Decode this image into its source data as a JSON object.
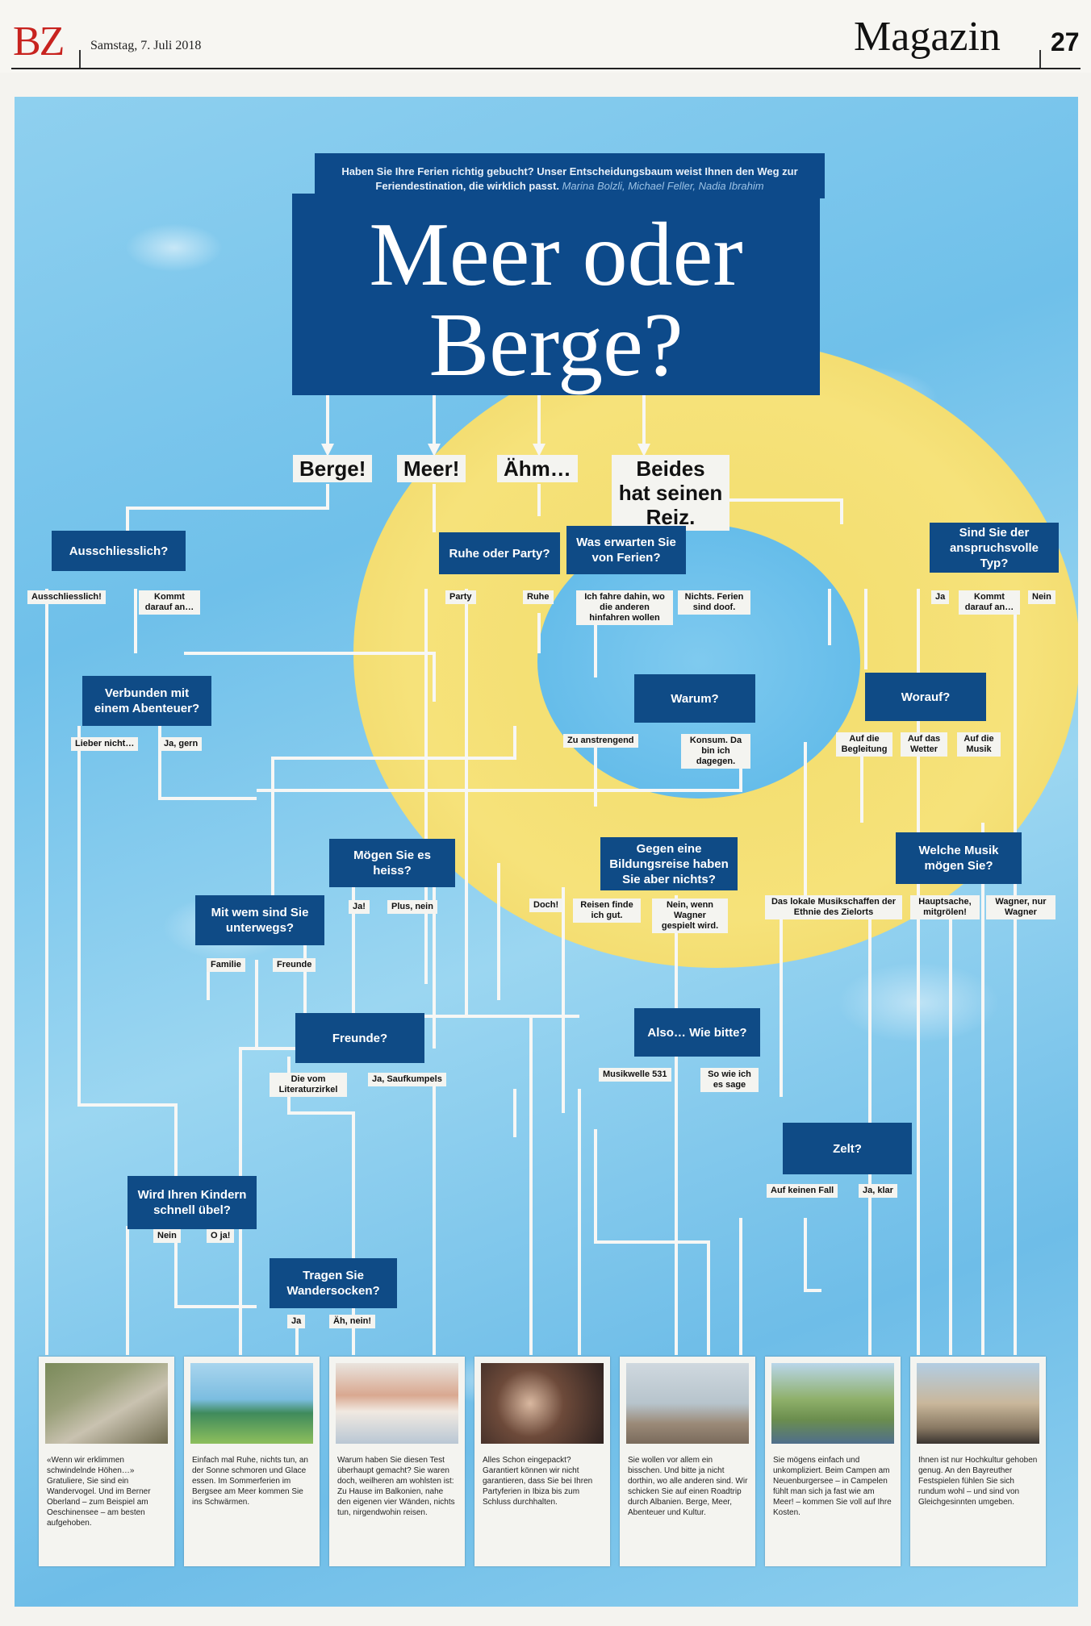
{
  "header": {
    "logo": "BZ",
    "date": "Samstag, 7. Juli 2018",
    "section": "Magazin",
    "page": "27"
  },
  "intro": {
    "text": "Haben Sie Ihre Ferien richtig gebucht? Unser Entscheidungsbaum weist Ihnen den Weg zur Feriendestination, die wirklich passt.",
    "credits": "Marina Bolzli, Michael Feller, Nadia Ibrahim"
  },
  "title": {
    "line1": "Meer oder",
    "line2": "Berge?"
  },
  "answers_top": [
    "Berge!",
    "Meer!",
    "Ähm…",
    "Beides hat seinen Reiz."
  ],
  "questions": {
    "ausschliesslich": "Ausschliesslich?",
    "ruhe_party": "Ruhe oder Party?",
    "erwarten": "Was erwarten Sie von Ferien?",
    "anspruchsvoll": "Sind Sie der anspruchsvolle Typ?",
    "abenteuer": "Verbunden mit einem Abenteuer?",
    "warum": "Warum?",
    "worauf": "Worauf?",
    "heiss": "Mögen Sie es heiss?",
    "bildungsreise": "Gegen eine Bildungsreise haben Sie aber nichts?",
    "musik": "Welche Musik mögen Sie?",
    "mit_wem": "Mit wem sind Sie unterwegs?",
    "freunde": "Freunde?",
    "wie_bitte": "Also… Wie bitte?",
    "zelt": "Zelt?",
    "kinder": "Wird Ihren Kindern schnell übel?",
    "wandersocken": "Tragen Sie Wandersocken?"
  },
  "options": {
    "ausschliesslich": [
      "Ausschliesslich!",
      "Kommt darauf an…"
    ],
    "ruhe_party": [
      "Party",
      "Ruhe"
    ],
    "erwarten": [
      "Ich fahre dahin, wo die anderen hinfahren wollen",
      "Nichts. Ferien sind doof."
    ],
    "anspruchsvoll": [
      "Ja",
      "Kommt darauf an…",
      "Nein"
    ],
    "abenteuer": [
      "Lieber nicht…",
      "Ja, gern"
    ],
    "warum": [
      "Zu anstrengend",
      "Konsum. Da bin ich dagegen."
    ],
    "worauf": [
      "Auf die Begleitung",
      "Auf das Wetter",
      "Auf die Musik"
    ],
    "heiss": [
      "Ja!",
      "Plus, nein"
    ],
    "bildungsreise": [
      "Doch!",
      "Reisen finde ich gut.",
      "Nein, wenn Wagner gespielt wird."
    ],
    "musik": [
      "Das lokale Musikschaffen der Ethnie des Zielorts",
      "Hauptsache, mitgrölen!",
      "Wagner, nur Wagner"
    ],
    "mit_wem": [
      "Familie",
      "Freunde"
    ],
    "freunde": [
      "Die vom Literaturzirkel",
      "Ja, Saufkumpels"
    ],
    "wie_bitte": [
      "Musikwelle 531",
      "So wie ich es sage"
    ],
    "zelt": [
      "Auf keinen Fall",
      "Ja, klar"
    ],
    "kinder": [
      "Nein",
      "O ja!"
    ],
    "wandersocken": [
      "Ja",
      "Äh, nein!"
    ]
  },
  "cards": [
    {
      "text": "«Wenn wir erklimmen schwindelnde Höhen…» Gratuliere, Sie sind ein Wandervogel. Und im Berner Oberland – zum Beispiel am Oeschinensee – am besten aufgehoben.",
      "icon": "mountain-trail-photo"
    },
    {
      "text": "Einfach mal Ruhe, nichts tun, an der Sonne schmoren und Glace essen. Im Sommerferien im Bergsee am Meer kommen Sie ins Schwärmen.",
      "icon": "lake-hut-photo"
    },
    {
      "text": "Warum haben Sie diesen Test überhaupt gemacht? Sie waren doch, weilheren am wohlsten ist: Zu Hause im Balkonien, nahe den eigenen vier Wänden, nichts tun, nirgendwohin reisen.",
      "icon": "balcony-photo"
    },
    {
      "text": "Alles Schon eingepackt? Garantiert können wir nicht garantieren, dass Sie bei Ihren Partyferien in Ibiza bis zum Schluss durchhalten.",
      "icon": "party-photo"
    },
    {
      "text": "Sie wollen vor allem ein bisschen. Und bitte ja nicht dorthin, wo alle anderen sind. Wir schicken Sie auf einen Roadtrip durch Albanien. Berge, Meer, Abenteuer und Kultur.",
      "icon": "coast-road-photo"
    },
    {
      "text": "Sie mögens einfach und unkompliziert. Beim Campen am Neuenburgersee – in Campelen fühlt man sich ja fast wie am Meer! – kommen Sie voll auf Ihre Kosten.",
      "icon": "campsite-photo"
    },
    {
      "text": "Ihnen ist nur Hochkultur gehoben genug. An den Bayreuther Festspielen fühlen Sie sich rundum wohl – und sind von Gleichgesinnten umgeben.",
      "icon": "opera-house-photo"
    }
  ],
  "colors": {
    "question_box": "#0f4b86",
    "title_box": "#0d4a8a",
    "water": "#7cc6ec",
    "ring": "#f3df6e",
    "logo_red": "#c8231f"
  }
}
